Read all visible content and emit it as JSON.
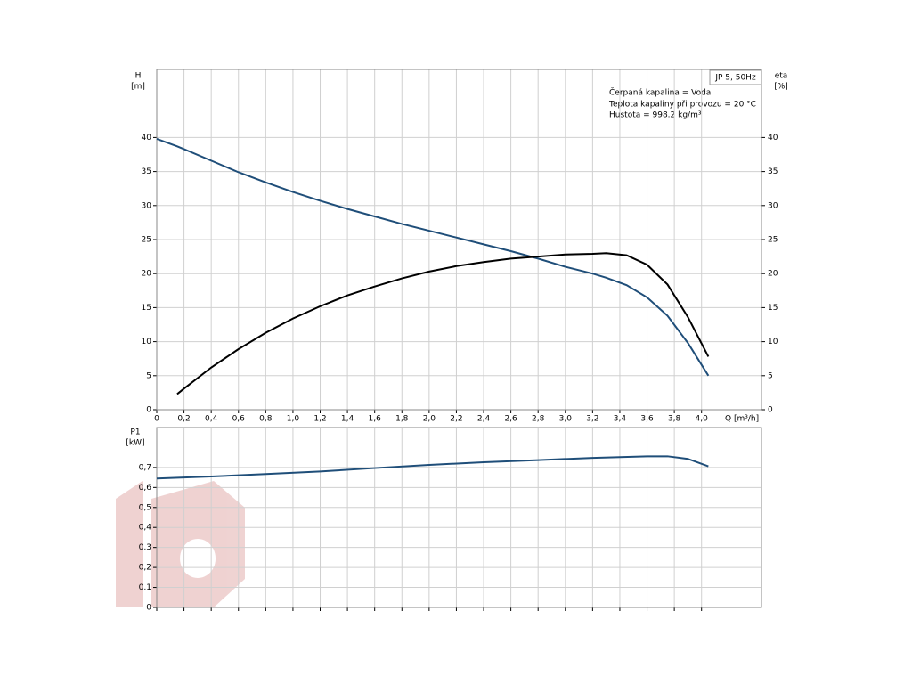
{
  "chart_data": [
    {
      "type": "line",
      "ylabel": "H",
      "yunit": "[m]",
      "y2label": "eta",
      "y2unit": "[%]",
      "xlabel": "Q [m³/h]",
      "legend_box": "JP 5, 50Hz",
      "annotations": [
        "Čerpaná kapalina = Voda",
        "Teplota kapaliny při provozu = 20 °C",
        "Hustota = 998.2 kg/m³"
      ],
      "x": [
        0,
        0.15,
        0.2,
        0.4,
        0.6,
        0.8,
        1.0,
        1.2,
        1.4,
        1.6,
        1.8,
        2.0,
        2.2,
        2.4,
        2.6,
        2.8,
        3.0,
        3.2,
        3.3,
        3.45,
        3.6,
        3.75,
        3.9,
        4.05
      ],
      "series": [
        {
          "name": "H",
          "color": "#1f4e79",
          "values": [
            39.8,
            38.7,
            38.3,
            36.6,
            34.9,
            33.4,
            32.0,
            30.7,
            29.5,
            28.4,
            27.3,
            26.3,
            25.3,
            24.3,
            23.3,
            22.2,
            21.0,
            20.0,
            19.4,
            18.3,
            16.5,
            13.8,
            9.8,
            5.0
          ]
        },
        {
          "name": "eta",
          "color": "#000000",
          "axis": "y2",
          "values": [
            null,
            2.3,
            3.1,
            6.2,
            8.9,
            11.3,
            13.4,
            15.2,
            16.8,
            18.1,
            19.3,
            20.3,
            21.1,
            21.7,
            22.2,
            22.5,
            22.8,
            22.9,
            23.0,
            22.7,
            21.3,
            18.4,
            13.6,
            7.8
          ]
        }
      ],
      "xlim": [
        0,
        4.44
      ],
      "xticks": [
        0,
        {
          "value": 0.2,
          "label": "0,2"
        },
        {
          "value": 0.4,
          "label": "0,4"
        },
        {
          "value": 0.6,
          "label": "0,6"
        },
        {
          "value": 0.8,
          "label": "0,8"
        },
        {
          "value": 1.0,
          "label": "1,0"
        },
        {
          "value": 1.2,
          "label": "1,2"
        },
        {
          "value": 1.4,
          "label": "1,4"
        },
        {
          "value": 1.6,
          "label": "1,6"
        },
        {
          "value": 1.8,
          "label": "1,8"
        },
        {
          "value": 2.0,
          "label": "2,0"
        },
        {
          "value": 2.2,
          "label": "2,2"
        },
        {
          "value": 2.4,
          "label": "2,4"
        },
        {
          "value": 2.6,
          "label": "2,6"
        },
        {
          "value": 2.8,
          "label": "2,8"
        },
        {
          "value": 3.0,
          "label": "3,0"
        },
        {
          "value": 3.2,
          "label": "3,2"
        },
        {
          "value": 3.4,
          "label": "3,4"
        },
        {
          "value": 3.6,
          "label": "3,6"
        },
        {
          "value": 3.8,
          "label": "3,8"
        },
        {
          "value": 4.0,
          "label": "4,0"
        }
      ],
      "ylim": [
        0,
        50
      ],
      "yticks": [
        0,
        5,
        10,
        15,
        20,
        25,
        30,
        35,
        40
      ],
      "y2lim": [
        0,
        50
      ],
      "y2ticks": [
        0,
        5,
        10,
        15,
        20,
        25,
        30,
        35,
        40
      ],
      "grid": true
    },
    {
      "type": "line",
      "ylabel": "P1",
      "yunit": "[kW]",
      "x": [
        0,
        0.4,
        0.8,
        1.2,
        1.6,
        2.0,
        2.4,
        2.8,
        3.2,
        3.6,
        3.75,
        3.9,
        4.05
      ],
      "series": [
        {
          "name": "P1",
          "color": "#1f4e79",
          "values": [
            0.645,
            0.655,
            0.667,
            0.68,
            0.697,
            0.713,
            0.726,
            0.737,
            0.748,
            0.756,
            0.756,
            0.743,
            0.706
          ]
        }
      ],
      "xlim": [
        0,
        4.44
      ],
      "ylim": [
        0,
        0.9
      ],
      "yticks": [
        0,
        {
          "value": 0.1,
          "label": "0,1"
        },
        {
          "value": 0.2,
          "label": "0,2"
        },
        {
          "value": 0.3,
          "label": "0,3"
        },
        {
          "value": 0.4,
          "label": "0,4"
        },
        {
          "value": 0.5,
          "label": "0,5"
        },
        {
          "value": 0.6,
          "label": "0,6"
        },
        {
          "value": 0.7,
          "label": "0,7"
        }
      ],
      "grid": true
    }
  ]
}
